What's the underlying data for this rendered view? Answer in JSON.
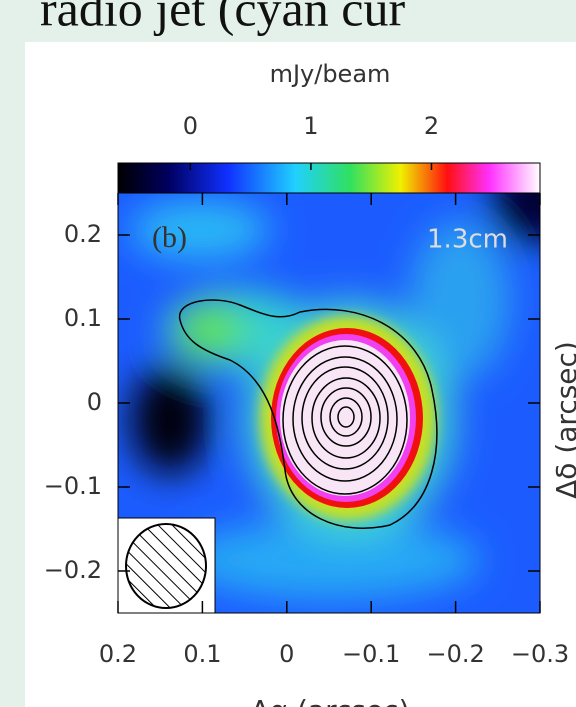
{
  "slide_title": "radio jet (cyan cur",
  "chart_data": {
    "type": "image",
    "colorbar_label": "mJy/beam",
    "panel_label": "(b)",
    "band_label": "1.3cm",
    "xlabel": "Δα (arcsec)",
    "ylabel": "Δδ (arcsec)",
    "xlim": [
      0.2,
      -0.3
    ],
    "ylim": [
      -0.25,
      0.25
    ],
    "xticks": [
      0.2,
      0.1,
      0,
      {
        "value": -0.1,
        "label": "−0.1"
      },
      {
        "value": -0.2,
        "label": "−0.2"
      },
      {
        "value": -0.3,
        "label": "−0.3"
      }
    ],
    "yticks": [
      0.2,
      0.1,
      0,
      {
        "value": -0.1,
        "label": "−0.1"
      },
      {
        "value": -0.2,
        "label": "−0.2"
      }
    ],
    "clim": [
      -0.6,
      2.9
    ],
    "cticks": [
      0,
      1,
      2
    ]
  }
}
